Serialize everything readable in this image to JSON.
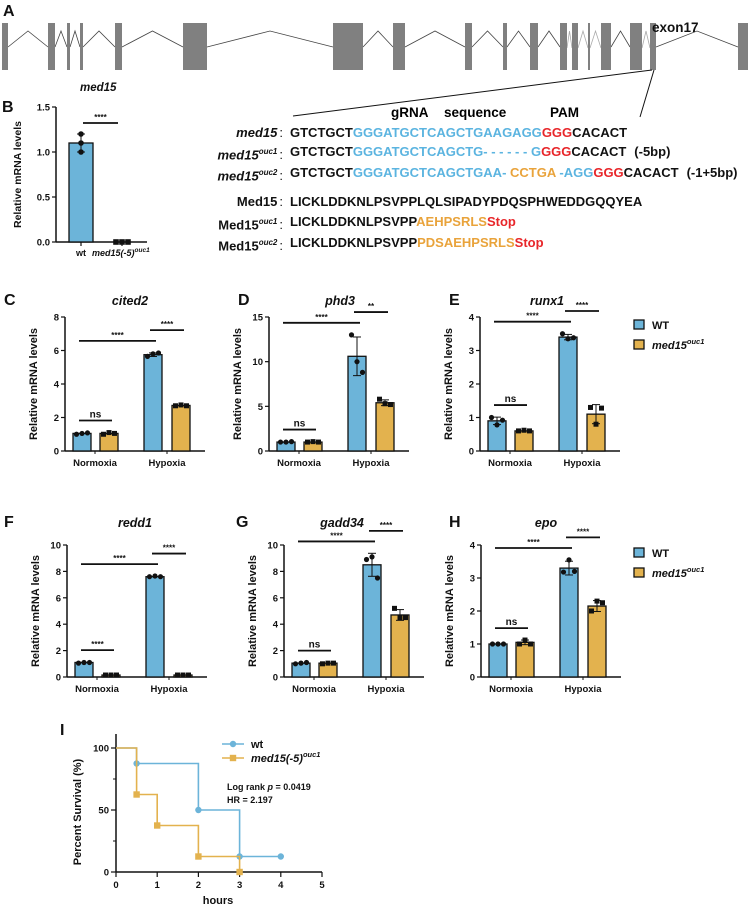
{
  "panel_letters": {
    "A": "A",
    "B": "B",
    "C": "C",
    "D": "D",
    "E": "E",
    "F": "F",
    "G": "G",
    "H": "H",
    "I": "I"
  },
  "colors": {
    "wt": "#6cb4d9",
    "mutant": "#e3b24e",
    "grna": "#5bb4e0",
    "pam": "#e8262a",
    "insert": "#e9a33b",
    "text": "#111111"
  },
  "gene": {
    "name": "med15",
    "exon_label": "exon17",
    "exon_count": 18
  },
  "sequence": {
    "header": {
      "grna": "gRNA",
      "sequence": "sequence",
      "pam": "PAM"
    },
    "dna_rows": [
      {
        "label": "med15",
        "sup": "",
        "segments": [
          {
            "text": "GTCTGCT",
            "color": "#111111"
          },
          {
            "text": "GGGATGCTCAGCTGAAGAGG",
            "color": "#5bb4e0"
          },
          {
            "text": "GGG",
            "color": "#e8262a"
          },
          {
            "text": "CACACT",
            "color": "#111111"
          }
        ],
        "suffix": ""
      },
      {
        "label": "med15",
        "sup": "ouc1",
        "segments": [
          {
            "text": "GTCTGCT",
            "color": "#111111"
          },
          {
            "text": "GGGATGCTCAGCTG- - - - - - G",
            "color": "#5bb4e0"
          },
          {
            "text": "GGG",
            "color": "#e8262a"
          },
          {
            "text": "CACACT",
            "color": "#111111"
          }
        ],
        "suffix": "(-5bp)"
      },
      {
        "label": "med15",
        "sup": "ouc2",
        "segments": [
          {
            "text": "GTCTGCT",
            "color": "#111111"
          },
          {
            "text": "GGGATGCTCAGCTGAA- ",
            "color": "#5bb4e0"
          },
          {
            "text": "CCTGA",
            "color": "#e9a33b"
          },
          {
            "text": " -AGG",
            "color": "#5bb4e0"
          },
          {
            "text": "GGG",
            "color": "#e8262a"
          },
          {
            "text": "CACACT",
            "color": "#111111"
          }
        ],
        "suffix": "(-1+5bp)"
      }
    ],
    "protein_rows": [
      {
        "label": "Med15",
        "sup": "",
        "segments": [
          {
            "text": "LICKLDDKNLPSVPPLQLSIPADYPDQSPHWEDDGQQYEA",
            "color": "#111111"
          }
        ]
      },
      {
        "label": "Med15",
        "sup": "ouc1",
        "segments": [
          {
            "text": "LICKLDDKNLPSVPP",
            "color": "#111111"
          },
          {
            "text": "AEHPSRLS",
            "color": "#e9a33b"
          },
          {
            "text": "Stop",
            "color": "#e8262a"
          }
        ]
      },
      {
        "label": "Med15",
        "sup": "ouc2",
        "segments": [
          {
            "text": "LICKLDDKNLPSVPP",
            "color": "#111111"
          },
          {
            "text": "PDSAEHPSRLS",
            "color": "#e9a33b"
          },
          {
            "text": "Stop",
            "color": "#e8262a"
          }
        ]
      }
    ]
  },
  "chart_data": [
    {
      "panel": "B",
      "type": "bar",
      "title": "med15",
      "ylabel": "Relative mRNA levels",
      "categories": [
        "wt",
        "med15(-5)"
      ],
      "category_superscripts": [
        "",
        "ouc1"
      ],
      "values": [
        1.1,
        0.0
      ],
      "points": [
        [
          1.2,
          1.1,
          1.0
        ],
        [
          0.0,
          0.0,
          0.0
        ]
      ],
      "ylim": [
        0,
        1.5
      ],
      "yticks": [
        0,
        0.5,
        1.0,
        1.5
      ],
      "yticklabels": [
        "0.0",
        "0.5",
        "1.0",
        "1.5"
      ],
      "significance": [
        {
          "a": 0,
          "b": 1,
          "label": "****"
        }
      ]
    },
    {
      "panel": "C",
      "type": "bar",
      "title": "cited2",
      "ylabel": "Relative mRNA levels",
      "categories": [
        "Normoxia",
        "Hypoxia"
      ],
      "series": [
        {
          "name": "WT",
          "sup": "",
          "values": [
            1.05,
            5.75
          ],
          "points": [
            [
              1.0,
              1.05,
              1.08
            ],
            [
              5.65,
              5.8,
              5.85
            ]
          ]
        },
        {
          "name": "med15",
          "sup": "ouc1",
          "values": [
            1.05,
            2.72
          ],
          "points": [
            [
              1.0,
              1.1,
              1.05
            ],
            [
              2.7,
              2.75,
              2.7
            ]
          ]
        }
      ],
      "ylim": [
        0,
        8
      ],
      "yticks": [
        0,
        2,
        4,
        6,
        8
      ],
      "yticklabels": [
        "0",
        "2",
        "4",
        "6",
        "8"
      ],
      "legend": false,
      "significance": [
        {
          "a": [
            0,
            0
          ],
          "b": [
            0,
            1
          ],
          "label": "ns"
        },
        {
          "a": [
            0,
            0
          ],
          "b": [
            1,
            0
          ],
          "label": "****"
        },
        {
          "a": [
            1,
            0
          ],
          "b": [
            1,
            1
          ],
          "label": "****"
        }
      ]
    },
    {
      "panel": "D",
      "type": "bar",
      "title": "phd3",
      "ylabel": "Relative mRNA levels",
      "categories": [
        "Normoxia",
        "Hypoxia"
      ],
      "series": [
        {
          "name": "WT",
          "sup": "",
          "values": [
            1.0,
            10.6
          ],
          "points": [
            [
              1.0,
              1.0,
              1.05
            ],
            [
              13.0,
              10.0,
              8.8
            ]
          ]
        },
        {
          "name": "med15",
          "sup": "ouc1",
          "values": [
            1.0,
            5.4
          ],
          "points": [
            [
              1.0,
              1.05,
              1.0
            ],
            [
              5.8,
              5.3,
              5.2
            ]
          ]
        }
      ],
      "ylim": [
        0,
        15
      ],
      "yticks": [
        0,
        5,
        10,
        15
      ],
      "yticklabels": [
        "0",
        "5",
        "10",
        "15"
      ],
      "legend": false,
      "significance": [
        {
          "a": [
            0,
            0
          ],
          "b": [
            0,
            1
          ],
          "label": "ns"
        },
        {
          "a": [
            0,
            0
          ],
          "b": [
            1,
            0
          ],
          "label": "****"
        },
        {
          "a": [
            1,
            0
          ],
          "b": [
            1,
            1
          ],
          "label": "**"
        }
      ]
    },
    {
      "panel": "E",
      "type": "bar",
      "title": "runx1",
      "ylabel": "Relative mRNA levels",
      "categories": [
        "Normoxia",
        "Hypoxia"
      ],
      "series": [
        {
          "name": "WT",
          "sup": "",
          "values": [
            0.9,
            3.4
          ],
          "points": [
            [
              1.0,
              0.78,
              0.92
            ],
            [
              3.5,
              3.35,
              3.38
            ]
          ]
        },
        {
          "name": "med15",
          "sup": "ouc1",
          "values": [
            0.6,
            1.1
          ],
          "points": [
            [
              0.6,
              0.62,
              0.6
            ],
            [
              1.3,
              0.8,
              1.28
            ]
          ]
        }
      ],
      "ylim": [
        0,
        4
      ],
      "yticks": [
        0,
        1,
        2,
        3,
        4
      ],
      "yticklabels": [
        "0",
        "1",
        "2",
        "3",
        "4"
      ],
      "legend": true,
      "significance": [
        {
          "a": [
            0,
            0
          ],
          "b": [
            0,
            1
          ],
          "label": "ns"
        },
        {
          "a": [
            0,
            0
          ],
          "b": [
            1,
            0
          ],
          "label": "****"
        },
        {
          "a": [
            1,
            0
          ],
          "b": [
            1,
            1
          ],
          "label": "****"
        }
      ]
    },
    {
      "panel": "F",
      "type": "bar",
      "title": "redd1",
      "ylabel": "Relative mRNA levels",
      "categories": [
        "Normoxia",
        "Hypoxia"
      ],
      "series": [
        {
          "name": "WT",
          "sup": "",
          "values": [
            1.1,
            7.6
          ],
          "points": [
            [
              1.05,
              1.1,
              1.1
            ],
            [
              7.6,
              7.65,
              7.6
            ]
          ]
        },
        {
          "name": "med15",
          "sup": "ouc1",
          "values": [
            0.15,
            0.15
          ],
          "points": [
            [
              0.15,
              0.15,
              0.15
            ],
            [
              0.15,
              0.15,
              0.15
            ]
          ]
        }
      ],
      "ylim": [
        0,
        10
      ],
      "yticks": [
        0,
        2,
        4,
        6,
        8,
        10
      ],
      "yticklabels": [
        "0",
        "2",
        "4",
        "6",
        "8",
        "10"
      ],
      "legend": false,
      "significance": [
        {
          "a": [
            0,
            0
          ],
          "b": [
            0,
            1
          ],
          "label": "****"
        },
        {
          "a": [
            0,
            0
          ],
          "b": [
            1,
            0
          ],
          "label": "****"
        },
        {
          "a": [
            1,
            0
          ],
          "b": [
            1,
            1
          ],
          "label": "****"
        }
      ]
    },
    {
      "panel": "G",
      "type": "bar",
      "title": "gadd34",
      "ylabel": "Relative mRNA levels",
      "categories": [
        "Normoxia",
        "Hypoxia"
      ],
      "series": [
        {
          "name": "WT",
          "sup": "",
          "values": [
            1.05,
            8.5
          ],
          "points": [
            [
              1.0,
              1.05,
              1.1
            ],
            [
              8.9,
              9.1,
              7.5
            ]
          ]
        },
        {
          "name": "med15",
          "sup": "ouc1",
          "values": [
            1.05,
            4.7
          ],
          "points": [
            [
              1.0,
              1.05,
              1.05
            ],
            [
              5.2,
              4.5,
              4.5
            ]
          ]
        }
      ],
      "ylim": [
        0,
        10
      ],
      "yticks": [
        0,
        2,
        4,
        6,
        8,
        10
      ],
      "yticklabels": [
        "0",
        "2",
        "4",
        "6",
        "8",
        "10"
      ],
      "legend": false,
      "significance": [
        {
          "a": [
            0,
            0
          ],
          "b": [
            0,
            1
          ],
          "label": "ns"
        },
        {
          "a": [
            0,
            0
          ],
          "b": [
            1,
            0
          ],
          "label": "****"
        },
        {
          "a": [
            1,
            0
          ],
          "b": [
            1,
            1
          ],
          "label": "****"
        }
      ]
    },
    {
      "panel": "H",
      "type": "bar",
      "title": "epo",
      "ylabel": "Relative mRNA levels",
      "categories": [
        "Normoxia",
        "Hypoxia"
      ],
      "series": [
        {
          "name": "WT",
          "sup": "",
          "values": [
            1.0,
            3.3
          ],
          "points": [
            [
              1.0,
              1.0,
              1.0
            ],
            [
              3.18,
              3.55,
              3.2
            ]
          ]
        },
        {
          "name": "med15",
          "sup": "ouc1",
          "values": [
            1.05,
            2.15
          ],
          "points": [
            [
              1.0,
              1.12,
              1.0
            ],
            [
              2.0,
              2.3,
              2.25
            ]
          ]
        }
      ],
      "ylim": [
        0,
        4
      ],
      "yticks": [
        0,
        1,
        2,
        3,
        4
      ],
      "yticklabels": [
        "0",
        "1",
        "2",
        "3",
        "4"
      ],
      "legend": true,
      "significance": [
        {
          "a": [
            0,
            0
          ],
          "b": [
            0,
            1
          ],
          "label": "ns"
        },
        {
          "a": [
            0,
            0
          ],
          "b": [
            1,
            0
          ],
          "label": "****"
        },
        {
          "a": [
            1,
            0
          ],
          "b": [
            1,
            1
          ],
          "label": "****"
        }
      ]
    },
    {
      "panel": "I",
      "type": "line",
      "title": "",
      "xlabel": "hours",
      "ylabel": "Percent Survival (%)",
      "xlim": [
        0,
        5
      ],
      "ylim": [
        0,
        100
      ],
      "xticks": [
        0,
        1,
        2,
        3,
        4,
        5
      ],
      "xticklabels": [
        "0",
        "1",
        "2",
        "3",
        "4",
        "5"
      ],
      "yticks": [
        0,
        50,
        100
      ],
      "yticklabels": [
        "0",
        "50",
        "100"
      ],
      "series": [
        {
          "name": "wt",
          "sup": "",
          "marker": "circle",
          "x": [
            0,
            0.5,
            2,
            3,
            4
          ],
          "y": [
            100,
            87.5,
            50,
            12.5,
            12.5
          ]
        },
        {
          "name": "med15(-5)",
          "sup": "ouc1",
          "marker": "square",
          "x": [
            0,
            0.5,
            1,
            2,
            3
          ],
          "y": [
            100,
            62.5,
            37.5,
            12.5,
            0
          ]
        }
      ],
      "stats": {
        "test": "Log rank ",
        "p_symbol": "p",
        "p_value": " = 0.0419",
        "hr": "HR = 2.197"
      },
      "legend": "top-right"
    }
  ]
}
